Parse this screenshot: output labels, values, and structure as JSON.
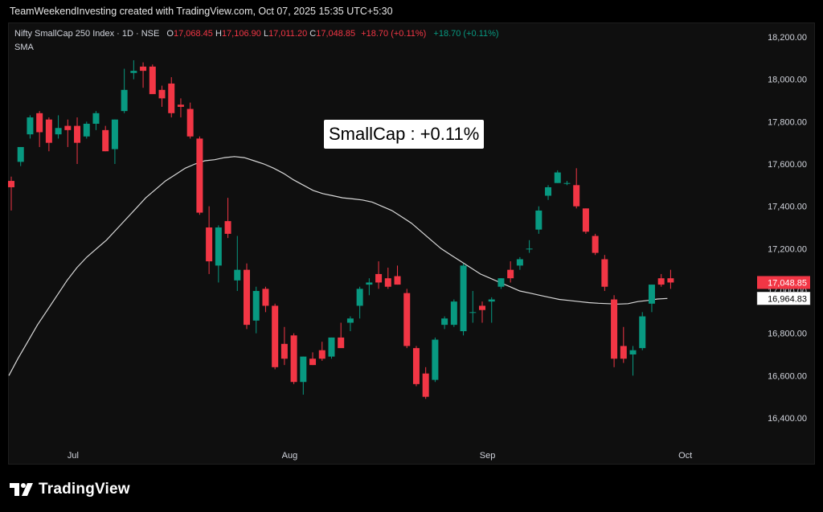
{
  "header": {
    "credit": "TeamWeekendInvesting created with TradingView.com, Oct 07, 2025 15:35 UTC+5:30"
  },
  "legend": {
    "symbol": "Nifty SmallCap 250 Index · 1D · NSE",
    "open_label": "O",
    "open": "17,068.45",
    "high_label": "H",
    "high": "17,106.90",
    "low_label": "L",
    "low": "17,011.20",
    "close_label": "C",
    "close": "17,048.85",
    "change": "+18.70 (+0.11%)",
    "change2": "+18.70 (+0.11%)",
    "indicator": "SMA"
  },
  "annotation": "SmallCap : +0.11%",
  "branding": {
    "name": "TradingView"
  },
  "colors": {
    "up": "#089981",
    "down": "#f23645",
    "sma": "#d9d9d9",
    "background": "#0f0f0f"
  },
  "chart_data": {
    "type": "candlestick",
    "y_axis": {
      "ticks": [
        16400,
        16600,
        16800,
        17000,
        17200,
        17400,
        17600,
        17800,
        18000,
        18200
      ],
      "tick_labels": [
        "16,400.00",
        "16,600.00",
        "16,800.00",
        "17,000.00",
        "17,200.00",
        "17,400.00",
        "17,600.00",
        "17,800.00",
        "18,000.00",
        "18,200.00"
      ],
      "ylim": [
        16300,
        18220
      ]
    },
    "x_axis": {
      "labels": [
        {
          "text": "Jul",
          "index": 4
        },
        {
          "text": "Aug",
          "index": 27
        },
        {
          "text": "Sep",
          "index": 48
        },
        {
          "text": "Oct",
          "index": 69
        }
      ]
    },
    "last_price_label": "17,048.85",
    "sma_value_label": "16,964.83",
    "candles": [
      {
        "o": 17520,
        "h": 17540,
        "l": 17380,
        "c": 17490
      },
      {
        "o": 17610,
        "h": 17680,
        "l": 17590,
        "c": 17680
      },
      {
        "o": 17740,
        "h": 17830,
        "l": 17720,
        "c": 17820
      },
      {
        "o": 17840,
        "h": 17850,
        "l": 17680,
        "c": 17750
      },
      {
        "o": 17810,
        "h": 17820,
        "l": 17660,
        "c": 17700
      },
      {
        "o": 17740,
        "h": 17830,
        "l": 17720,
        "c": 17770
      },
      {
        "o": 17780,
        "h": 17810,
        "l": 17680,
        "c": 17760
      },
      {
        "o": 17780,
        "h": 17820,
        "l": 17600,
        "c": 17700
      },
      {
        "o": 17730,
        "h": 17800,
        "l": 17720,
        "c": 17790
      },
      {
        "o": 17790,
        "h": 17850,
        "l": 17760,
        "c": 17840
      },
      {
        "o": 17760,
        "h": 17780,
        "l": 17660,
        "c": 17660
      },
      {
        "o": 17670,
        "h": 17810,
        "l": 17600,
        "c": 17810
      },
      {
        "o": 17850,
        "h": 18050,
        "l": 17840,
        "c": 17950
      },
      {
        "o": 18030,
        "h": 18090,
        "l": 18000,
        "c": 18040
      },
      {
        "o": 18060,
        "h": 18080,
        "l": 17960,
        "c": 18040
      },
      {
        "o": 18060,
        "h": 18070,
        "l": 17940,
        "c": 17930
      },
      {
        "o": 17950,
        "h": 17970,
        "l": 17870,
        "c": 17910
      },
      {
        "o": 17980,
        "h": 18010,
        "l": 17820,
        "c": 17840
      },
      {
        "o": 17880,
        "h": 17910,
        "l": 17820,
        "c": 17870
      },
      {
        "o": 17860,
        "h": 17890,
        "l": 17720,
        "c": 17730
      },
      {
        "o": 17720,
        "h": 17730,
        "l": 17360,
        "c": 17370
      },
      {
        "o": 17300,
        "h": 17400,
        "l": 17080,
        "c": 17140
      },
      {
        "o": 17120,
        "h": 17310,
        "l": 17040,
        "c": 17300
      },
      {
        "o": 17330,
        "h": 17440,
        "l": 17250,
        "c": 17270
      },
      {
        "o": 17050,
        "h": 17260,
        "l": 17000,
        "c": 17100
      },
      {
        "o": 17100,
        "h": 17130,
        "l": 16820,
        "c": 16840
      },
      {
        "o": 16860,
        "h": 17020,
        "l": 16800,
        "c": 17000
      },
      {
        "o": 17010,
        "h": 17020,
        "l": 16900,
        "c": 16930
      },
      {
        "o": 16930,
        "h": 16940,
        "l": 16630,
        "c": 16640
      },
      {
        "o": 16750,
        "h": 16830,
        "l": 16650,
        "c": 16680
      },
      {
        "o": 16790,
        "h": 16800,
        "l": 16560,
        "c": 16570
      },
      {
        "o": 16570,
        "h": 16690,
        "l": 16510,
        "c": 16690
      },
      {
        "o": 16680,
        "h": 16710,
        "l": 16650,
        "c": 16650
      },
      {
        "o": 16720,
        "h": 16760,
        "l": 16670,
        "c": 16680
      },
      {
        "o": 16690,
        "h": 16780,
        "l": 16680,
        "c": 16780
      },
      {
        "o": 16780,
        "h": 16850,
        "l": 16740,
        "c": 16730
      },
      {
        "o": 16850,
        "h": 16880,
        "l": 16810,
        "c": 16870
      },
      {
        "o": 16930,
        "h": 17020,
        "l": 16870,
        "c": 17010
      },
      {
        "o": 17030,
        "h": 17060,
        "l": 16980,
        "c": 17040
      },
      {
        "o": 17080,
        "h": 17140,
        "l": 17010,
        "c": 17040
      },
      {
        "o": 17060,
        "h": 17110,
        "l": 17010,
        "c": 17020
      },
      {
        "o": 17070,
        "h": 17120,
        "l": 17030,
        "c": 17030
      },
      {
        "o": 16990,
        "h": 17010,
        "l": 16730,
        "c": 16740
      },
      {
        "o": 16730,
        "h": 16740,
        "l": 16550,
        "c": 16560
      },
      {
        "o": 16610,
        "h": 16640,
        "l": 16490,
        "c": 16500
      },
      {
        "o": 16580,
        "h": 16780,
        "l": 16570,
        "c": 16770
      },
      {
        "o": 16840,
        "h": 16880,
        "l": 16820,
        "c": 16870
      },
      {
        "o": 16840,
        "h": 16960,
        "l": 16830,
        "c": 16950
      },
      {
        "o": 16810,
        "h": 17130,
        "l": 16790,
        "c": 17120
      },
      {
        "o": 16900,
        "h": 17000,
        "l": 16850,
        "c": 16900
      },
      {
        "o": 16930,
        "h": 16950,
        "l": 16850,
        "c": 16910
      },
      {
        "o": 16950,
        "h": 16970,
        "l": 16850,
        "c": 16960
      },
      {
        "o": 17020,
        "h": 17060,
        "l": 17010,
        "c": 17060
      },
      {
        "o": 17100,
        "h": 17140,
        "l": 17040,
        "c": 17060
      },
      {
        "o": 17120,
        "h": 17160,
        "l": 17100,
        "c": 17150
      },
      {
        "o": 17200,
        "h": 17240,
        "l": 17180,
        "c": 17200
      },
      {
        "o": 17290,
        "h": 17400,
        "l": 17270,
        "c": 17380
      },
      {
        "o": 17450,
        "h": 17500,
        "l": 17430,
        "c": 17490
      },
      {
        "o": 17510,
        "h": 17570,
        "l": 17510,
        "c": 17560
      },
      {
        "o": 17510,
        "h": 17520,
        "l": 17500,
        "c": 17510
      },
      {
        "o": 17500,
        "h": 17580,
        "l": 17390,
        "c": 17400
      },
      {
        "o": 17390,
        "h": 17390,
        "l": 17270,
        "c": 17280
      },
      {
        "o": 17260,
        "h": 17270,
        "l": 17170,
        "c": 17180
      },
      {
        "o": 17150,
        "h": 17170,
        "l": 17000,
        "c": 17020
      },
      {
        "o": 16960,
        "h": 16980,
        "l": 16640,
        "c": 16680
      },
      {
        "o": 16740,
        "h": 16830,
        "l": 16660,
        "c": 16680
      },
      {
        "o": 16700,
        "h": 16740,
        "l": 16600,
        "c": 16720
      },
      {
        "o": 16730,
        "h": 16900,
        "l": 16720,
        "c": 16880
      },
      {
        "o": 16940,
        "h": 17030,
        "l": 16900,
        "c": 17030
      },
      {
        "o": 17060,
        "h": 17080,
        "l": 17020,
        "c": 17030
      },
      {
        "o": 17060,
        "h": 17100,
        "l": 17010,
        "c": 17040
      }
    ],
    "sma": [
      16600,
      16680,
      16760,
      16840,
      16910,
      16980,
      17050,
      17110,
      17160,
      17200,
      17240,
      17290,
      17340,
      17390,
      17440,
      17480,
      17520,
      17550,
      17580,
      17600,
      17615,
      17620,
      17630,
      17635,
      17630,
      17615,
      17600,
      17580,
      17555,
      17525,
      17500,
      17475,
      17460,
      17450,
      17440,
      17435,
      17430,
      17420,
      17400,
      17380,
      17350,
      17320,
      17280,
      17240,
      17200,
      17170,
      17140,
      17110,
      17080,
      17060,
      17040,
      17020,
      17000,
      16990,
      16980,
      16970,
      16960,
      16955,
      16950,
      16945,
      16942,
      16940,
      16938,
      16940,
      16950,
      16955,
      16962,
      16964.83
    ]
  }
}
